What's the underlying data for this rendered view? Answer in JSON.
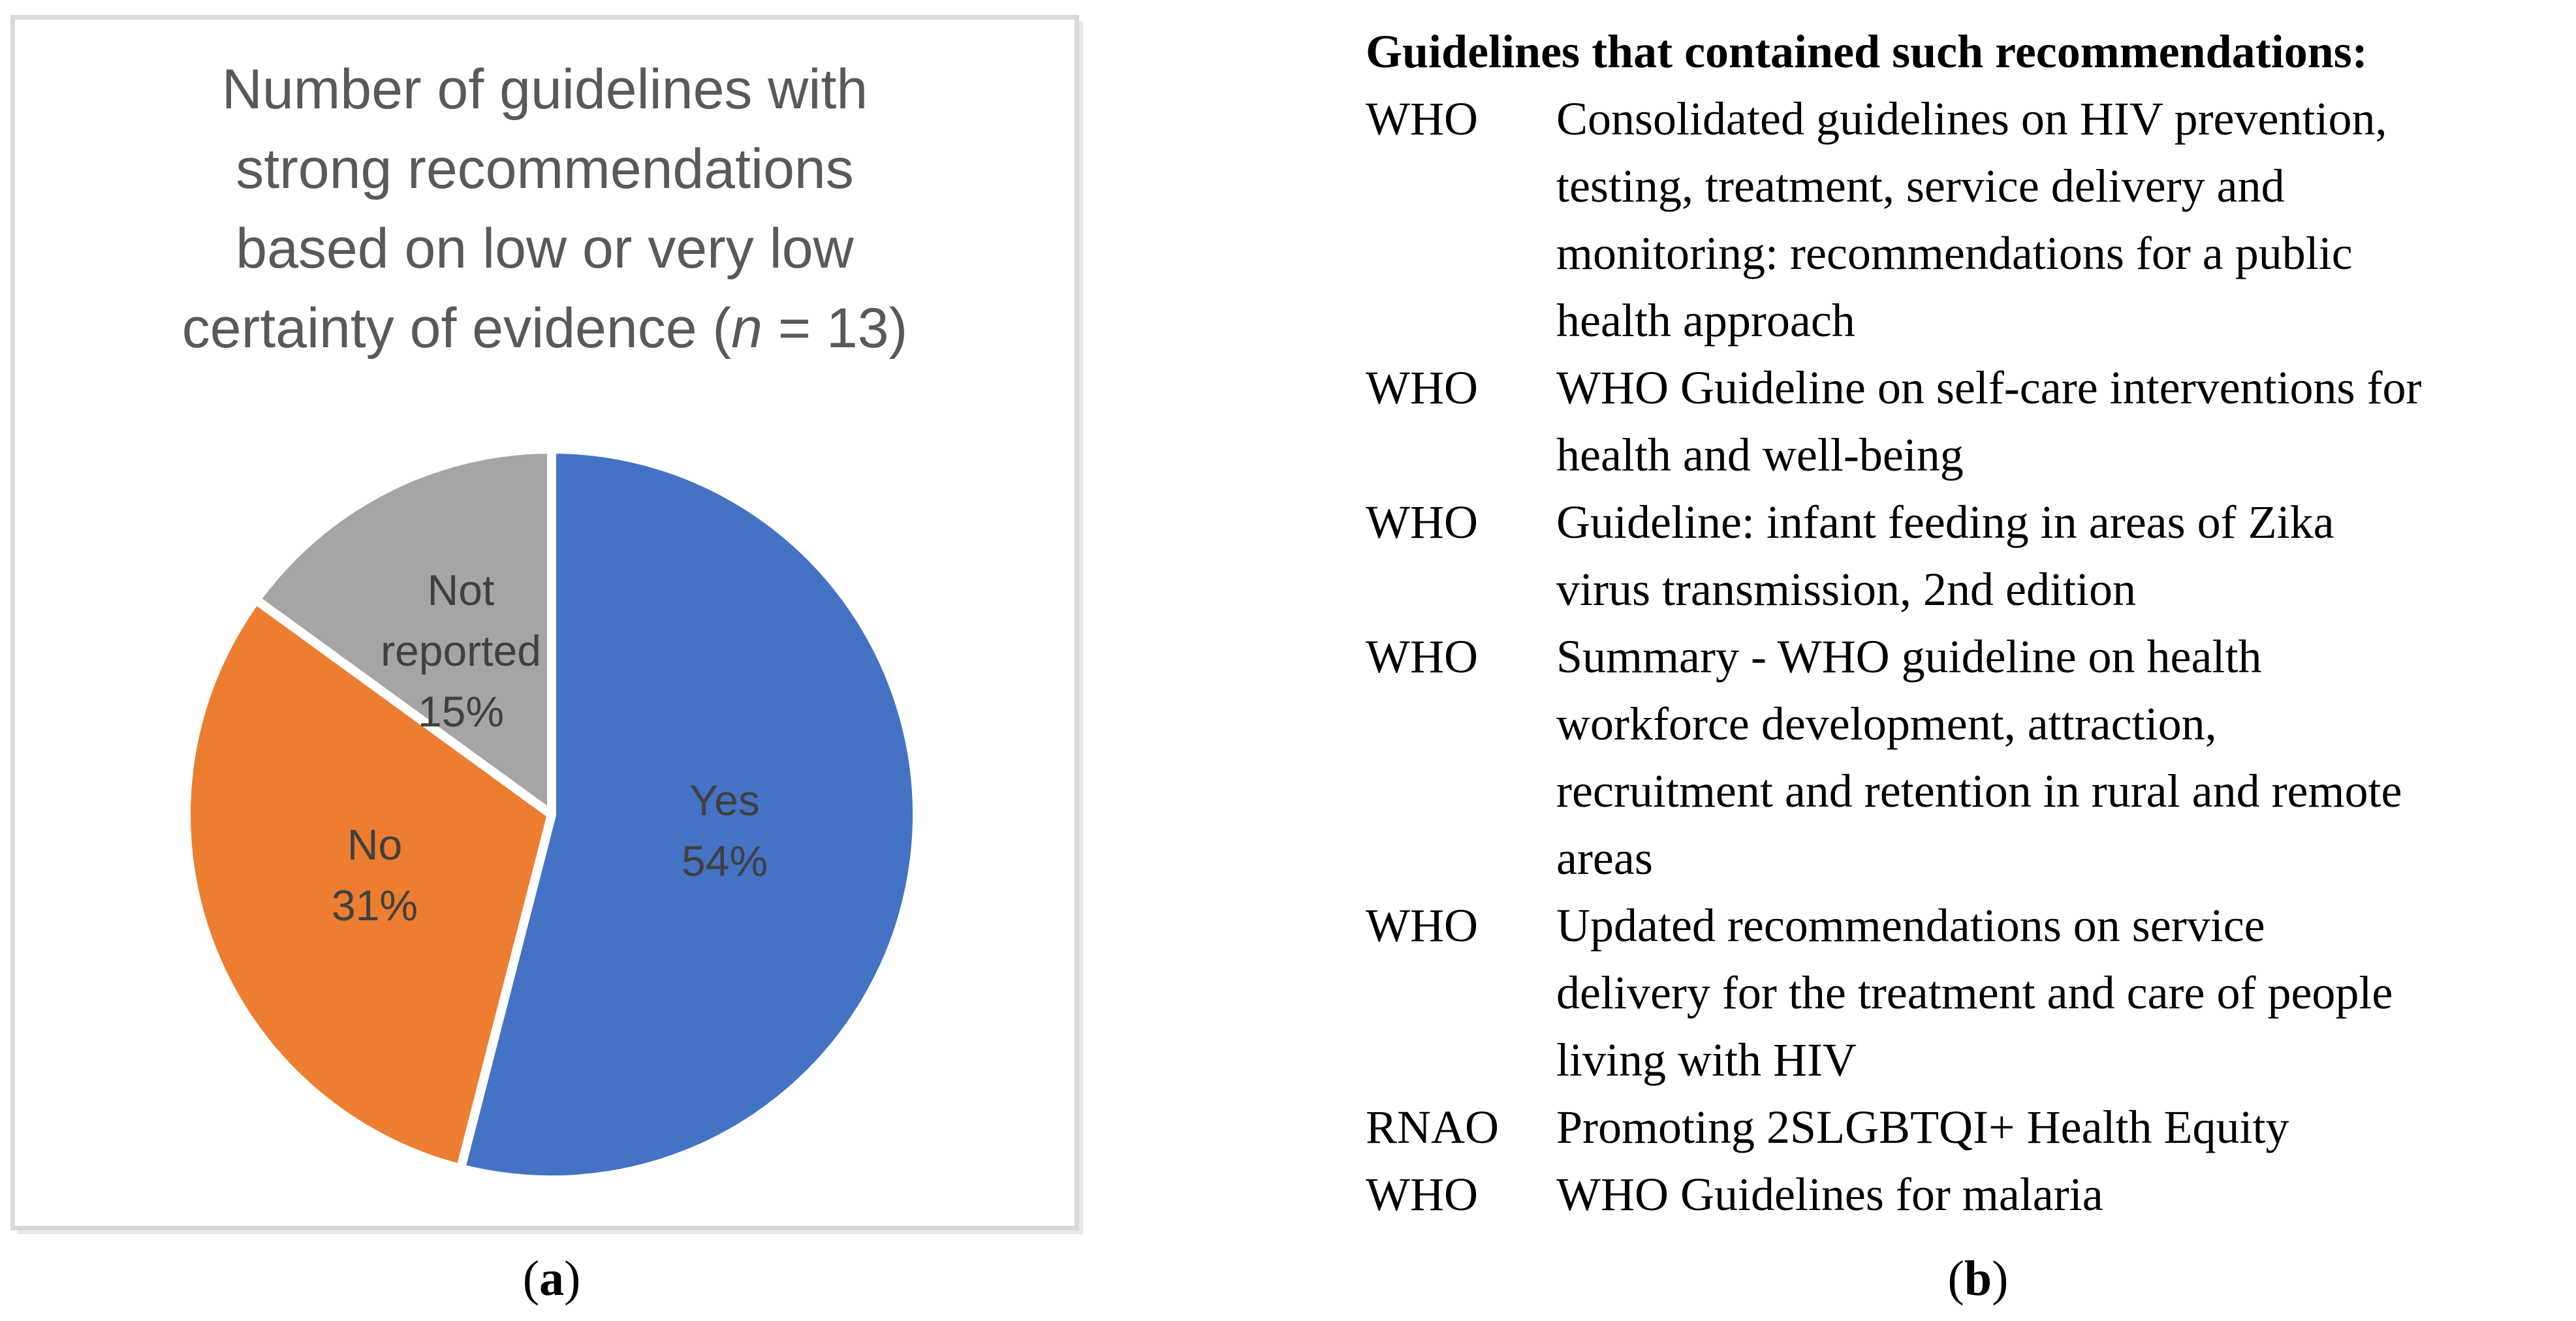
{
  "chart_data": {
    "type": "pie",
    "title": "Number of guidelines with strong recommendations based on low or very low certainty of evidence (n = 13)",
    "title_lines": [
      "Number of guidelines with",
      "strong recommendations",
      "based on low or very low"
    ],
    "title_line4": {
      "pre": "certainty of evidence (",
      "italic": "n",
      "post": " = 13)"
    },
    "n_total": 13,
    "start_angle_deg_from_top": 0,
    "direction": "clockwise",
    "legend_position": "none",
    "data_labels": "inside",
    "slice_border_color": "#FFFFFF",
    "label_color": "#404040",
    "title_color": "#595959",
    "panel_border_color": "#D9D9D9",
    "slices": [
      {
        "label": "Yes",
        "value_pct": 54,
        "color": "#4472C4",
        "label_lines": [
          "Yes",
          "54%"
        ]
      },
      {
        "label": "No",
        "value_pct": 31,
        "color": "#ED7D31",
        "label_lines": [
          "No",
          "31%"
        ]
      },
      {
        "label": "Not reported",
        "value_pct": 15,
        "color": "#A5A5A5",
        "label_lines": [
          "Not",
          "reported",
          "15%"
        ]
      }
    ]
  },
  "figure": {
    "caption_a": {
      "open": "(",
      "letter": "a",
      "close": ")"
    },
    "caption_b": {
      "open": "(",
      "letter": "b",
      "close": ")"
    },
    "panel_b": {
      "heading": "Guidelines that contained such recommendations:",
      "rows": [
        {
          "org": "WHO",
          "lines": [
            "Consolidated guidelines on HIV prevention,",
            "testing, treatment, service delivery and",
            "monitoring: recommendations for a public",
            "health approach"
          ]
        },
        {
          "org": "WHO",
          "lines": [
            "WHO Guideline on self-care interventions for",
            "health and well-being"
          ]
        },
        {
          "org": "WHO",
          "lines": [
            "Guideline: infant feeding in areas of Zika",
            "virus transmission, 2nd edition"
          ]
        },
        {
          "org": "WHO",
          "lines": [
            "Summary - WHO guideline on health",
            "workforce development, attraction,",
            "recruitment and retention in rural and remote",
            "areas"
          ]
        },
        {
          "org": "WHO",
          "lines": [
            "Updated recommendations on service",
            "delivery for the treatment and care of people",
            "living with HIV"
          ]
        },
        {
          "org": "RNAO",
          "lines": [
            "Promoting 2SLGBTQI+ Health Equity"
          ]
        },
        {
          "org": "WHO",
          "lines": [
            "WHO Guidelines for malaria"
          ]
        }
      ]
    }
  }
}
